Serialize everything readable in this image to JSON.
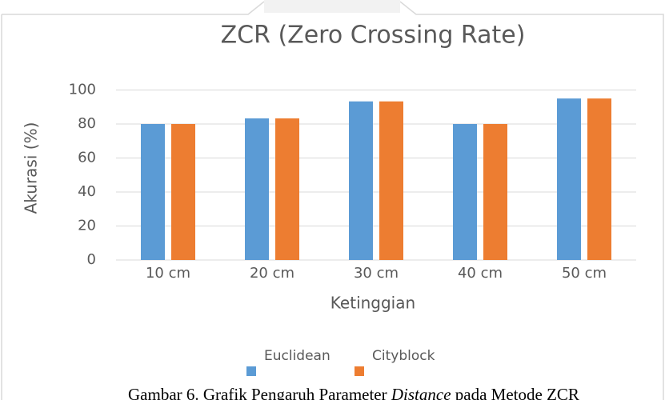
{
  "chart_data": {
    "type": "bar",
    "title": "ZCR (Zero Crossing Rate)",
    "x_label": "Ketinggian",
    "y_label": "Akurasi (%)",
    "categories": [
      "10 cm",
      "20 cm",
      "30 cm",
      "40 cm",
      "50 cm"
    ],
    "series": [
      {
        "name": "Euclidean",
        "color": "#5b9bd5",
        "values": [
          80,
          83.3,
          93.3,
          80,
          95
        ]
      },
      {
        "name": "Cityblock",
        "color": "#ed7d31",
        "values": [
          80,
          83.3,
          93.3,
          80,
          95
        ]
      }
    ],
    "ylim": [
      0,
      100
    ],
    "yticks": [
      0,
      20,
      40,
      60,
      80,
      100
    ],
    "grid": true,
    "legend": "bottom"
  },
  "caption": [
    "Gambar 6. Grafik Pengaruh Parameter ",
    "Distance",
    " pada Metode ZCR"
  ]
}
